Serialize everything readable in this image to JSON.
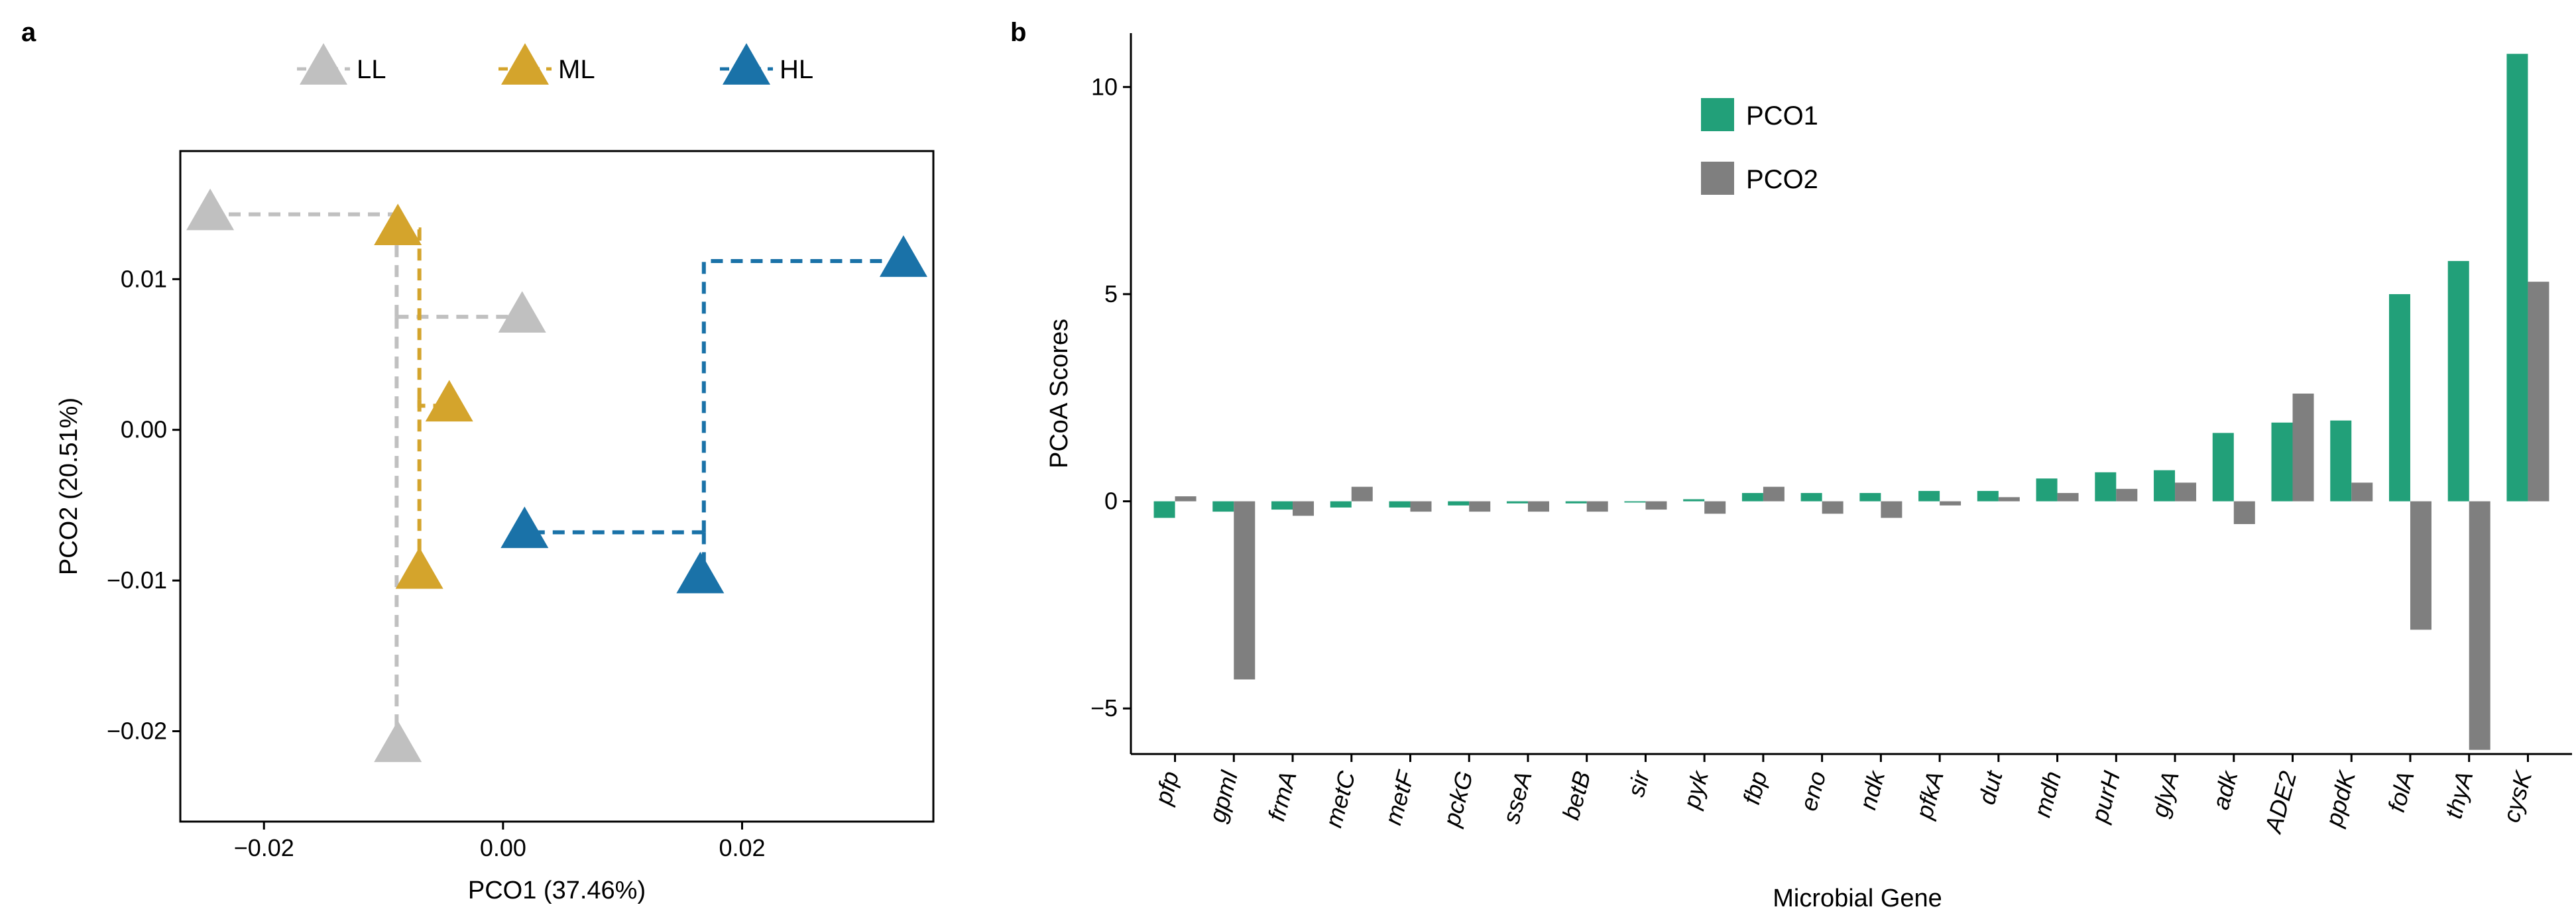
{
  "panel_a": {
    "panel_label": "a",
    "chart_data": {
      "type": "scatter",
      "xlabel": "PCO1 (37.46%)",
      "ylabel": "PCO2 (20.51%)",
      "xlim": [
        -0.027,
        0.036
      ],
      "ylim": [
        -0.026,
        0.0185
      ],
      "xticks": [
        -0.02,
        0.0,
        0.02
      ],
      "xtick_labels": [
        "−0.02",
        "0.00",
        "0.02"
      ],
      "yticks": [
        -0.02,
        -0.01,
        0.0,
        0.01
      ],
      "ytick_labels": [
        "−0.02",
        "−0.01",
        "0.00",
        "0.01"
      ],
      "grid": false,
      "legend_position": "top",
      "series": [
        {
          "name": "LL",
          "color": "#c0c0c0",
          "points": [
            {
              "x": -0.0245,
              "y": 0.0143
            },
            {
              "x": 0.0016,
              "y": 0.0075
            },
            {
              "x": -0.0088,
              "y": -0.021
            }
          ],
          "centroid": {
            "x": -0.0089,
            "y": 0.0075
          }
        },
        {
          "name": "ML",
          "color": "#d4a42c",
          "points": [
            {
              "x": -0.0088,
              "y": 0.0133
            },
            {
              "x": -0.0045,
              "y": 0.0016
            },
            {
              "x": -0.007,
              "y": -0.0095
            }
          ],
          "centroid": {
            "x": -0.007,
            "y": 0.002
          }
        },
        {
          "name": "HL",
          "color": "#1a72a8",
          "points": [
            {
              "x": 0.0335,
              "y": 0.0112
            },
            {
              "x": 0.0018,
              "y": -0.0068
            },
            {
              "x": 0.0165,
              "y": -0.0098
            }
          ],
          "centroid": {
            "x": 0.0168,
            "y": -0.0068
          }
        }
      ]
    }
  },
  "panel_b": {
    "panel_label": "b",
    "chart_data": {
      "type": "bar",
      "xlabel": "Microbial Gene",
      "ylabel": "PCoA Scores",
      "ylim": [
        -6.1,
        11.3
      ],
      "yticks": [
        -5,
        0,
        5,
        10
      ],
      "ytick_labels": [
        "−5",
        "0",
        "5",
        "10"
      ],
      "grid": false,
      "legend_position": "top-center",
      "categories": [
        "pfp",
        "gpml",
        "frmA",
        "metC",
        "metF",
        "pckG",
        "sseA",
        "betB",
        "sir",
        "pyk",
        "fbp",
        "eno",
        "ndk",
        "pfkA",
        "dut",
        "mdh",
        "purH",
        "glyA",
        "adk",
        "ADE2",
        "ppdK",
        "folA",
        "thyA",
        "cysK"
      ],
      "series": [
        {
          "name": "PCO1",
          "color": "#22a079",
          "values": [
            -0.4,
            -0.25,
            -0.2,
            -0.15,
            -0.15,
            -0.1,
            -0.05,
            -0.05,
            -0.03,
            0.05,
            0.2,
            0.2,
            0.2,
            0.25,
            0.25,
            0.55,
            0.7,
            0.75,
            1.65,
            1.9,
            1.95,
            5.0,
            5.8,
            10.8
          ]
        },
        {
          "name": "PCO2",
          "color": "#7f7f7f",
          "values": [
            0.12,
            -4.3,
            -0.35,
            0.35,
            -0.25,
            -0.25,
            -0.25,
            -0.25,
            -0.2,
            -0.3,
            0.35,
            -0.3,
            -0.4,
            -0.1,
            0.1,
            0.2,
            0.3,
            0.45,
            -0.55,
            2.6,
            0.45,
            -3.1,
            -6.0,
            5.3
          ]
        }
      ]
    }
  }
}
